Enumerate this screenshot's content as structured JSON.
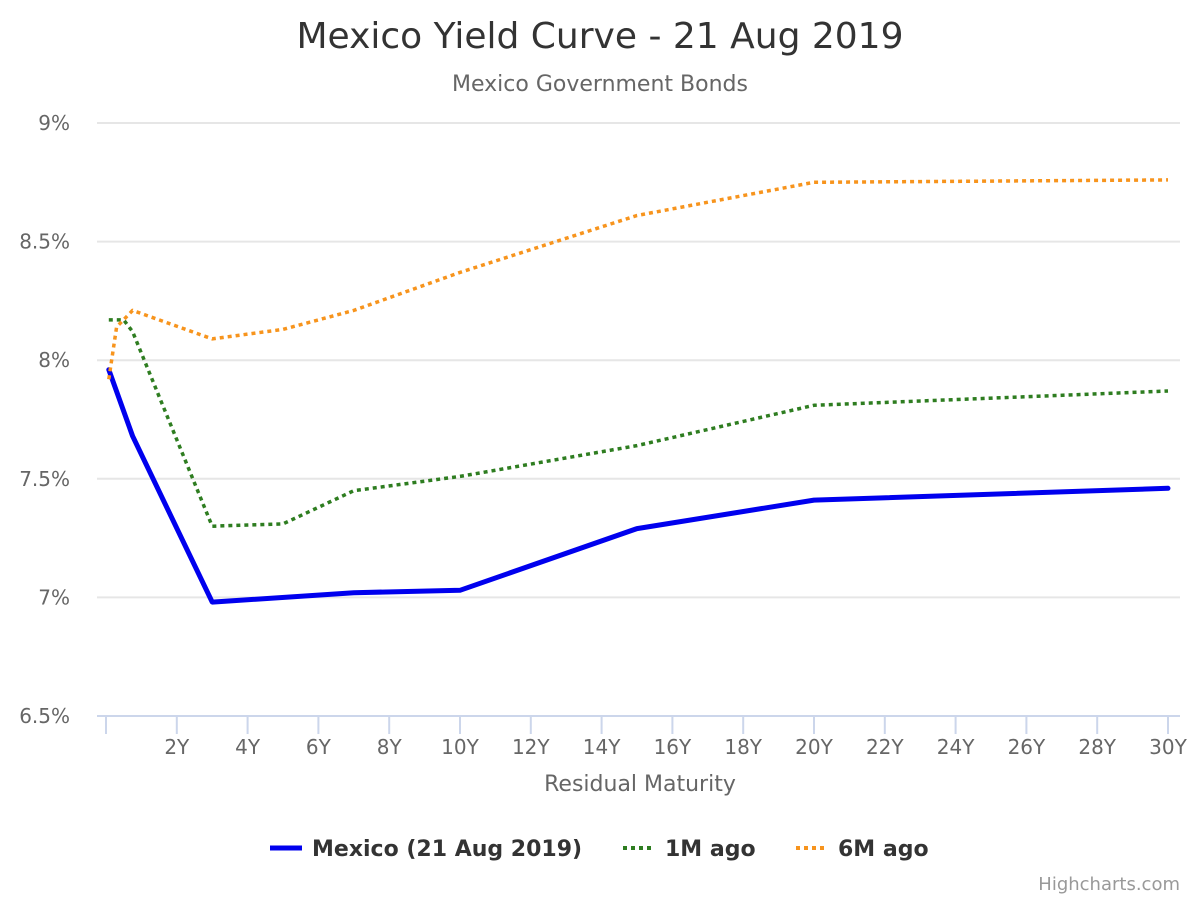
{
  "chart_data": {
    "type": "line",
    "title": "Mexico Yield Curve - 21 Aug 2019",
    "subtitle": "Mexico Government Bonds",
    "xlabel": "Residual Maturity",
    "ylabel": "",
    "xlim": [
      0,
      30
    ],
    "ylim": [
      6.5,
      9
    ],
    "x_tick_labels": [
      "2Y",
      "4Y",
      "6Y",
      "8Y",
      "10Y",
      "12Y",
      "14Y",
      "16Y",
      "18Y",
      "20Y",
      "22Y",
      "24Y",
      "26Y",
      "28Y",
      "30Y"
    ],
    "x_ticks": [
      2,
      4,
      6,
      8,
      10,
      12,
      14,
      16,
      18,
      20,
      22,
      24,
      26,
      28,
      30
    ],
    "y_ticks": [
      6.5,
      7,
      7.5,
      8,
      8.5,
      9
    ],
    "y_tick_labels": [
      "6.5%",
      "7%",
      "7.5%",
      "8%",
      "8.5%",
      "9%"
    ],
    "grid": true,
    "legend_position": "bottom",
    "series": [
      {
        "name": "Mexico (21 Aug 2019)",
        "color": "#0000ee",
        "dash": "solid",
        "x": [
          0.08,
          0.75,
          3,
          7,
          10,
          15,
          20,
          30
        ],
        "y": [
          7.96,
          7.68,
          6.98,
          7.02,
          7.03,
          7.29,
          7.41,
          7.46
        ]
      },
      {
        "name": "1M ago",
        "color": "#2e7d20",
        "dash": "dotted",
        "x": [
          0.08,
          0.5,
          0.75,
          3,
          5,
          7,
          10,
          15,
          20,
          30
        ],
        "y": [
          8.17,
          8.17,
          8.12,
          7.3,
          7.31,
          7.45,
          7.51,
          7.64,
          7.81,
          7.87
        ]
      },
      {
        "name": "6M ago",
        "color": "#f7941d",
        "dash": "dotted",
        "x": [
          0.08,
          0.3,
          0.75,
          3,
          5,
          7,
          10,
          15,
          20,
          30
        ],
        "y": [
          7.92,
          8.14,
          8.21,
          8.09,
          8.13,
          8.21,
          8.37,
          8.61,
          8.75,
          8.76
        ]
      }
    ]
  },
  "credits": "Highcharts.com"
}
